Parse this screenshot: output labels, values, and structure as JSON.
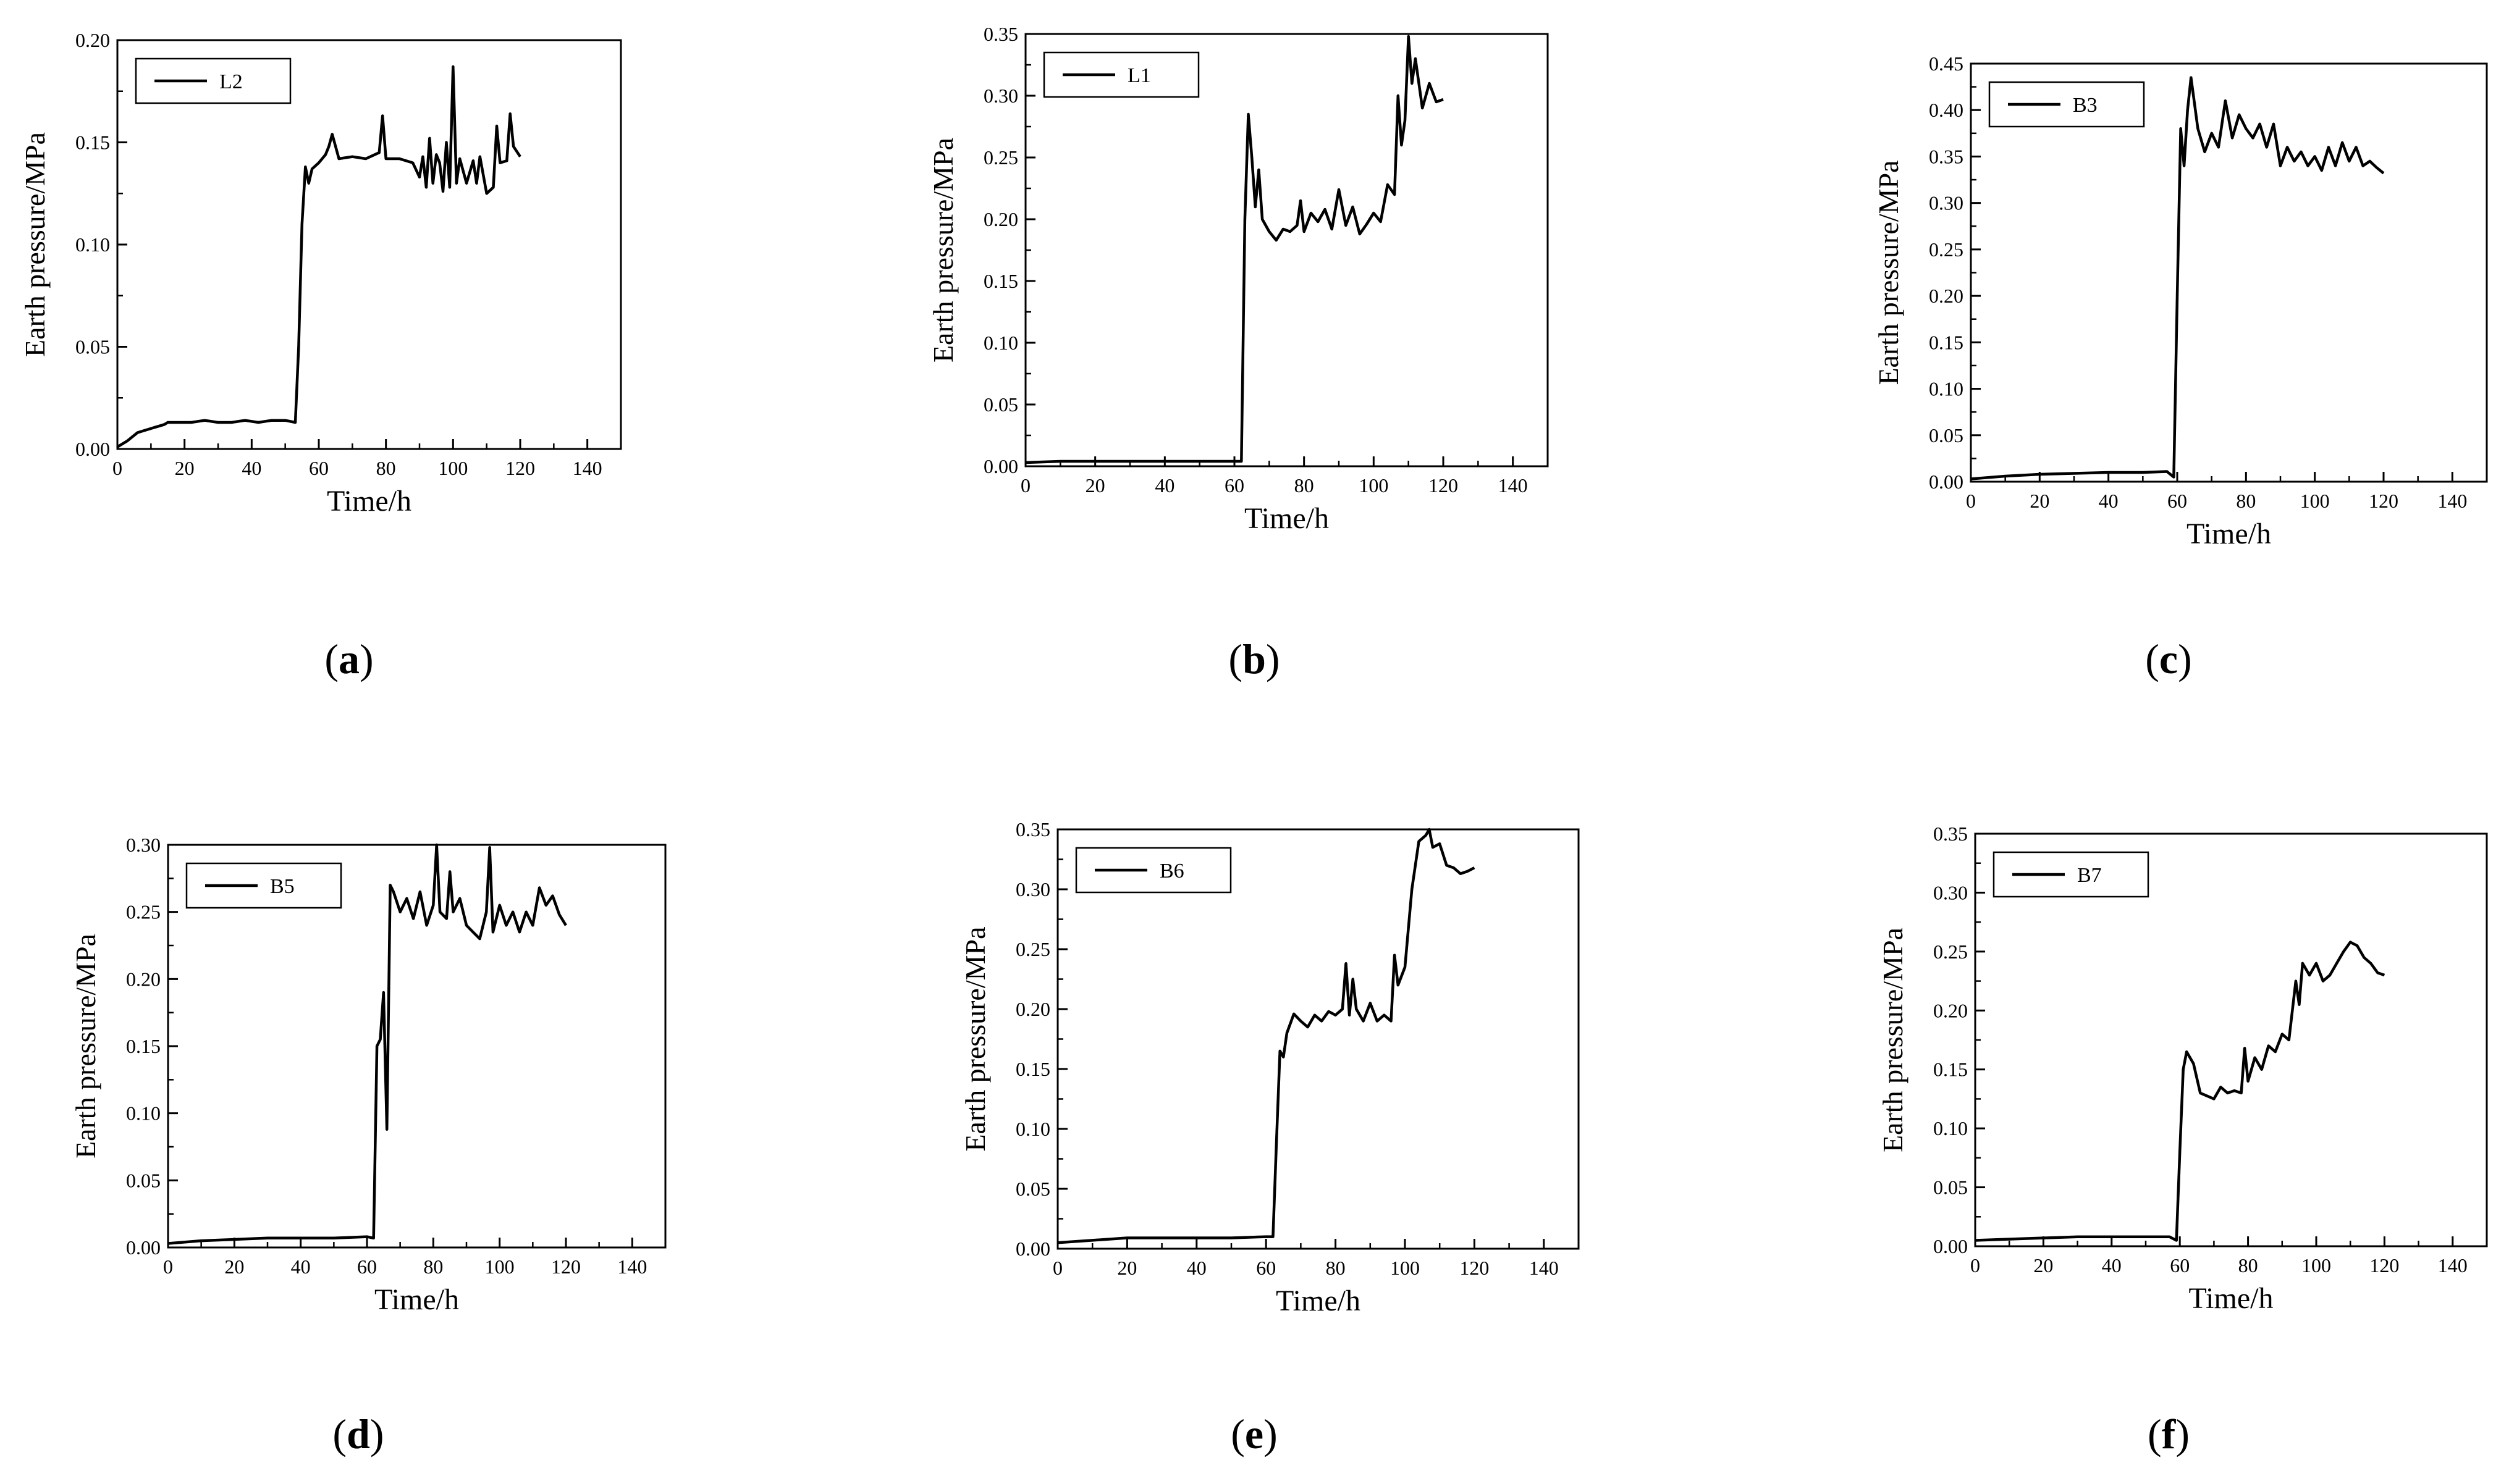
{
  "panel_labels": [
    "(a)",
    "(b)",
    "(c)",
    "(d)",
    "(e)",
    "(f)"
  ],
  "chart_data": [
    {
      "type": "line",
      "panel": "(a)",
      "xlabel": "Time/h",
      "ylabel": "Earth pressure/MPa",
      "xlim": [
        0,
        150
      ],
      "ylim": [
        0,
        0.2
      ],
      "xticks": [
        0,
        20,
        40,
        60,
        80,
        100,
        120,
        140
      ],
      "yticks": [
        0.0,
        0.05,
        0.1,
        0.15,
        0.2
      ],
      "ytick_labels": [
        "0.00",
        "0.05",
        "0.10",
        "0.15",
        "0.20"
      ],
      "legend": "top-left",
      "series": [
        {
          "name": "L2",
          "x": [
            0,
            3,
            6,
            10,
            14,
            15,
            18,
            22,
            26,
            30,
            34,
            38,
            42,
            46,
            50,
            53,
            54,
            55,
            56,
            57,
            58,
            60,
            62,
            63,
            64,
            66,
            70,
            74,
            78,
            79,
            80,
            84,
            88,
            90,
            91,
            92,
            93,
            94,
            95,
            96,
            97,
            98,
            99,
            100,
            101,
            102,
            104,
            106,
            107,
            108,
            110,
            112,
            113,
            114,
            116,
            117,
            118,
            120
          ],
          "values": [
            0.001,
            0.004,
            0.008,
            0.01,
            0.012,
            0.013,
            0.013,
            0.013,
            0.014,
            0.013,
            0.013,
            0.014,
            0.013,
            0.014,
            0.014,
            0.013,
            0.05,
            0.11,
            0.138,
            0.13,
            0.137,
            0.14,
            0.144,
            0.148,
            0.154,
            0.142,
            0.143,
            0.142,
            0.145,
            0.163,
            0.142,
            0.142,
            0.14,
            0.133,
            0.143,
            0.128,
            0.152,
            0.13,
            0.144,
            0.14,
            0.126,
            0.15,
            0.128,
            0.187,
            0.13,
            0.142,
            0.13,
            0.141,
            0.13,
            0.143,
            0.125,
            0.128,
            0.158,
            0.14,
            0.141,
            0.164,
            0.148,
            0.143
          ]
        }
      ]
    },
    {
      "type": "line",
      "panel": "(b)",
      "xlabel": "Time/h",
      "ylabel": "Earth pressure/MPa",
      "xlim": [
        0,
        150
      ],
      "ylim": [
        0,
        0.35
      ],
      "xticks": [
        0,
        20,
        40,
        60,
        80,
        100,
        120,
        140
      ],
      "yticks": [
        0.0,
        0.05,
        0.1,
        0.15,
        0.2,
        0.25,
        0.3,
        0.35
      ],
      "ytick_labels": [
        "0.00",
        "0.05",
        "0.10",
        "0.15",
        "0.20",
        "0.25",
        "0.30",
        "0.35"
      ],
      "legend": "top-left",
      "series": [
        {
          "name": "L1",
          "x": [
            0,
            10,
            20,
            30,
            40,
            50,
            60,
            62,
            63,
            64,
            65,
            66,
            67,
            68,
            70,
            72,
            74,
            76,
            78,
            79,
            80,
            82,
            84,
            86,
            88,
            90,
            92,
            94,
            96,
            98,
            100,
            102,
            104,
            106,
            107,
            108,
            109,
            110,
            111,
            112,
            114,
            116,
            118,
            120
          ],
          "values": [
            0.003,
            0.004,
            0.004,
            0.004,
            0.004,
            0.004,
            0.004,
            0.004,
            0.2,
            0.285,
            0.25,
            0.21,
            0.24,
            0.2,
            0.19,
            0.183,
            0.192,
            0.19,
            0.195,
            0.215,
            0.19,
            0.205,
            0.198,
            0.208,
            0.192,
            0.224,
            0.195,
            0.21,
            0.188,
            0.196,
            0.205,
            0.198,
            0.228,
            0.22,
            0.3,
            0.26,
            0.28,
            0.348,
            0.31,
            0.33,
            0.29,
            0.31,
            0.295,
            0.297
          ]
        }
      ]
    },
    {
      "type": "line",
      "panel": "(c)",
      "xlabel": "Time/h",
      "ylabel": "Earth pressure/MPa",
      "xlim": [
        0,
        150
      ],
      "ylim": [
        0,
        0.45
      ],
      "xticks": [
        0,
        20,
        40,
        60,
        80,
        100,
        120,
        140
      ],
      "yticks": [
        0.0,
        0.05,
        0.1,
        0.15,
        0.2,
        0.25,
        0.3,
        0.35,
        0.4,
        0.45
      ],
      "ytick_labels": [
        "0.00",
        "0.05",
        "0.10",
        "0.15",
        "0.20",
        "0.25",
        "0.30",
        "0.35",
        "0.40",
        "0.45"
      ],
      "legend": "top-left",
      "series": [
        {
          "name": "B3",
          "x": [
            0,
            10,
            20,
            30,
            40,
            50,
            57,
            59,
            60,
            61,
            62,
            63,
            64,
            66,
            68,
            70,
            72,
            74,
            76,
            78,
            80,
            82,
            84,
            86,
            88,
            90,
            92,
            94,
            96,
            98,
            100,
            102,
            104,
            106,
            108,
            110,
            112,
            114,
            116,
            118,
            120
          ],
          "values": [
            0.003,
            0.006,
            0.008,
            0.009,
            0.01,
            0.01,
            0.011,
            0.005,
            0.2,
            0.38,
            0.34,
            0.4,
            0.435,
            0.38,
            0.355,
            0.375,
            0.36,
            0.41,
            0.37,
            0.395,
            0.38,
            0.37,
            0.385,
            0.36,
            0.385,
            0.34,
            0.36,
            0.345,
            0.355,
            0.34,
            0.35,
            0.335,
            0.36,
            0.34,
            0.365,
            0.345,
            0.36,
            0.34,
            0.345,
            0.338,
            0.332
          ]
        }
      ]
    },
    {
      "type": "line",
      "panel": "(d)",
      "xlabel": "Time/h",
      "ylabel": "Earth pressure/MPa",
      "xlim": [
        0,
        150
      ],
      "ylim": [
        0,
        0.3
      ],
      "xticks": [
        0,
        20,
        40,
        60,
        80,
        100,
        120,
        140
      ],
      "yticks": [
        0.0,
        0.05,
        0.1,
        0.15,
        0.2,
        0.25,
        0.3
      ],
      "ytick_labels": [
        "0.00",
        "0.05",
        "0.10",
        "0.15",
        "0.20",
        "0.25",
        "0.30"
      ],
      "legend": "top-left",
      "series": [
        {
          "name": "B5",
          "x": [
            0,
            10,
            20,
            30,
            40,
            50,
            60,
            62,
            63,
            64,
            65,
            66,
            67,
            68,
            70,
            72,
            74,
            76,
            78,
            80,
            81,
            82,
            84,
            85,
            86,
            88,
            90,
            92,
            94,
            96,
            97,
            98,
            100,
            102,
            104,
            106,
            108,
            110,
            112,
            114,
            116,
            118,
            120
          ],
          "values": [
            0.003,
            0.005,
            0.006,
            0.007,
            0.007,
            0.007,
            0.008,
            0.007,
            0.15,
            0.155,
            0.19,
            0.088,
            0.27,
            0.265,
            0.25,
            0.26,
            0.245,
            0.265,
            0.24,
            0.255,
            0.3,
            0.25,
            0.245,
            0.28,
            0.25,
            0.26,
            0.24,
            0.235,
            0.23,
            0.25,
            0.298,
            0.235,
            0.255,
            0.24,
            0.25,
            0.235,
            0.25,
            0.24,
            0.268,
            0.255,
            0.262,
            0.248,
            0.24
          ]
        }
      ]
    },
    {
      "type": "line",
      "panel": "(e)",
      "xlabel": "Time/h",
      "ylabel": "Earth pressure/MPa",
      "xlim": [
        0,
        150
      ],
      "ylim": [
        0,
        0.35
      ],
      "xticks": [
        0,
        20,
        40,
        60,
        80,
        100,
        120,
        140
      ],
      "yticks": [
        0.0,
        0.05,
        0.1,
        0.15,
        0.2,
        0.25,
        0.3,
        0.35
      ],
      "ytick_labels": [
        "0.00",
        "0.05",
        "0.10",
        "0.15",
        "0.20",
        "0.25",
        "0.30",
        "0.35"
      ],
      "legend": "top-left",
      "series": [
        {
          "name": "B6",
          "x": [
            0,
            10,
            20,
            30,
            40,
            50,
            60,
            62,
            63,
            64,
            65,
            66,
            68,
            70,
            72,
            74,
            76,
            78,
            80,
            82,
            83,
            84,
            85,
            86,
            88,
            90,
            92,
            94,
            96,
            97,
            98,
            100,
            102,
            104,
            106,
            107,
            108,
            110,
            112,
            114,
            116,
            118,
            120
          ],
          "values": [
            0.005,
            0.007,
            0.009,
            0.009,
            0.009,
            0.009,
            0.01,
            0.01,
            0.09,
            0.165,
            0.16,
            0.18,
            0.196,
            0.19,
            0.185,
            0.195,
            0.19,
            0.198,
            0.195,
            0.2,
            0.238,
            0.195,
            0.225,
            0.2,
            0.19,
            0.205,
            0.19,
            0.195,
            0.19,
            0.245,
            0.22,
            0.235,
            0.3,
            0.34,
            0.345,
            0.35,
            0.335,
            0.338,
            0.32,
            0.318,
            0.313,
            0.315,
            0.318
          ]
        }
      ]
    },
    {
      "type": "line",
      "panel": "(f)",
      "xlabel": "Time/h",
      "ylabel": "Earth pressure/MPa",
      "xlim": [
        0,
        150
      ],
      "ylim": [
        0,
        0.35
      ],
      "xticks": [
        0,
        20,
        40,
        60,
        80,
        100,
        120,
        140
      ],
      "yticks": [
        0.0,
        0.05,
        0.1,
        0.15,
        0.2,
        0.25,
        0.3,
        0.35
      ],
      "ytick_labels": [
        "0.00",
        "0.05",
        "0.10",
        "0.15",
        "0.20",
        "0.25",
        "0.30",
        "0.35"
      ],
      "legend": "top-left",
      "series": [
        {
          "name": "B7",
          "x": [
            0,
            10,
            20,
            30,
            40,
            50,
            57,
            59,
            60,
            61,
            62,
            64,
            66,
            70,
            72,
            74,
            76,
            78,
            79,
            80,
            82,
            84,
            86,
            88,
            90,
            92,
            94,
            95,
            96,
            98,
            100,
            102,
            104,
            106,
            108,
            110,
            112,
            114,
            116,
            118,
            120
          ],
          "values": [
            0.005,
            0.006,
            0.007,
            0.008,
            0.008,
            0.008,
            0.008,
            0.005,
            0.08,
            0.15,
            0.165,
            0.155,
            0.13,
            0.125,
            0.135,
            0.13,
            0.132,
            0.13,
            0.168,
            0.14,
            0.16,
            0.15,
            0.17,
            0.165,
            0.18,
            0.175,
            0.225,
            0.205,
            0.24,
            0.23,
            0.24,
            0.225,
            0.23,
            0.24,
            0.25,
            0.258,
            0.255,
            0.245,
            0.24,
            0.232,
            0.23
          ]
        }
      ]
    }
  ]
}
